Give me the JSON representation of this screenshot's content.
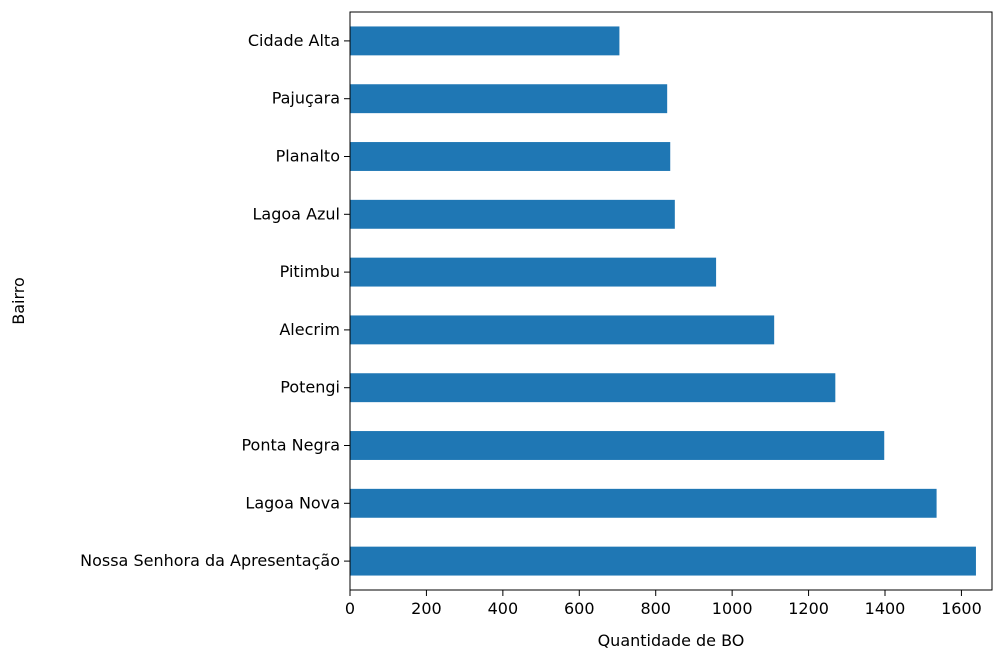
{
  "chart_data": {
    "type": "bar",
    "orientation": "horizontal",
    "title": "",
    "xlabel": "Quantidade de BO",
    "ylabel": "Bairro",
    "categories": [
      "Cidade Alta",
      "Pajuçara",
      "Planalto",
      "Lagoa Azul",
      "Pitimbu",
      "Alecrim",
      "Potengi",
      "Ponta Negra",
      "Lagoa Nova",
      "Nossa Senhora da Apresentação"
    ],
    "values": [
      705,
      830,
      838,
      850,
      958,
      1110,
      1270,
      1398,
      1535,
      1638
    ],
    "xlim": [
      0,
      1680
    ],
    "xticks": [
      0,
      200,
      400,
      600,
      800,
      1000,
      1200,
      1400,
      1600
    ],
    "grid": false,
    "bar_color": "#1f77b4"
  }
}
